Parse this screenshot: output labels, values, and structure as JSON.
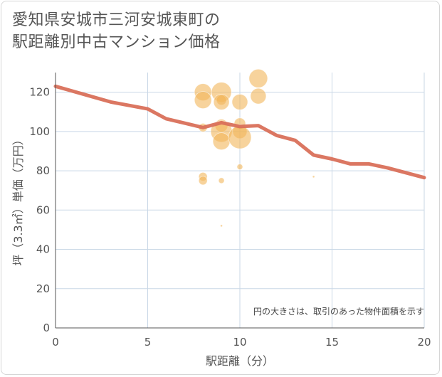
{
  "title_lines": [
    "愛知県安城市三河安城東町の",
    "駅距離別中古マンション価格"
  ],
  "chart_data": {
    "type": "scatter",
    "title": "愛知県安城市三河安城東町の駅距離別中古マンション価格",
    "xlabel": "駅距離（分）",
    "ylabel": "坪（3.3㎡）単価（万円）",
    "xlim": [
      0,
      20
    ],
    "ylim": [
      0,
      130
    ],
    "x_ticks": [
      0,
      5,
      10,
      15,
      20
    ],
    "y_ticks": [
      0,
      20,
      40,
      60,
      80,
      100,
      120
    ],
    "grid": true,
    "note": "円の大きさは、取引のあった物件面積を示す",
    "colors": {
      "bubble": "#f2b65a",
      "line": "#d9705a",
      "grid": "#c9d7e6"
    },
    "points": [
      {
        "x": 8,
        "y": 120,
        "size": 12
      },
      {
        "x": 8,
        "y": 116,
        "size": 12
      },
      {
        "x": 8,
        "y": 102,
        "size": 6
      },
      {
        "x": 8,
        "y": 77,
        "size": 6
      },
      {
        "x": 8,
        "y": 75,
        "size": 6
      },
      {
        "x": 9,
        "y": 120,
        "size": 14
      },
      {
        "x": 9,
        "y": 116,
        "size": 7
      },
      {
        "x": 9,
        "y": 115,
        "size": 11
      },
      {
        "x": 9,
        "y": 103,
        "size": 9
      },
      {
        "x": 9,
        "y": 100,
        "size": 15
      },
      {
        "x": 9,
        "y": 95,
        "size": 12
      },
      {
        "x": 9,
        "y": 75,
        "size": 4
      },
      {
        "x": 9,
        "y": 52,
        "size": 1.5
      },
      {
        "x": 10,
        "y": 115,
        "size": 11
      },
      {
        "x": 10,
        "y": 104,
        "size": 8
      },
      {
        "x": 10,
        "y": 100,
        "size": 10
      },
      {
        "x": 10,
        "y": 97,
        "size": 16
      },
      {
        "x": 10,
        "y": 82,
        "size": 4
      },
      {
        "x": 11,
        "y": 127,
        "size": 13
      },
      {
        "x": 11,
        "y": 118,
        "size": 11
      },
      {
        "x": 14,
        "y": 77,
        "size": 1.5
      }
    ],
    "trend_line": {
      "x": [
        0,
        3,
        5,
        6,
        8,
        9,
        10,
        11,
        12,
        13,
        14,
        15,
        16,
        17,
        18,
        19,
        20
      ],
      "y": [
        123,
        115,
        111.5,
        106.5,
        102,
        104.5,
        102.5,
        103,
        98,
        95.5,
        88,
        86,
        83.5,
        83.5,
        81.5,
        79,
        76.5
      ]
    }
  }
}
